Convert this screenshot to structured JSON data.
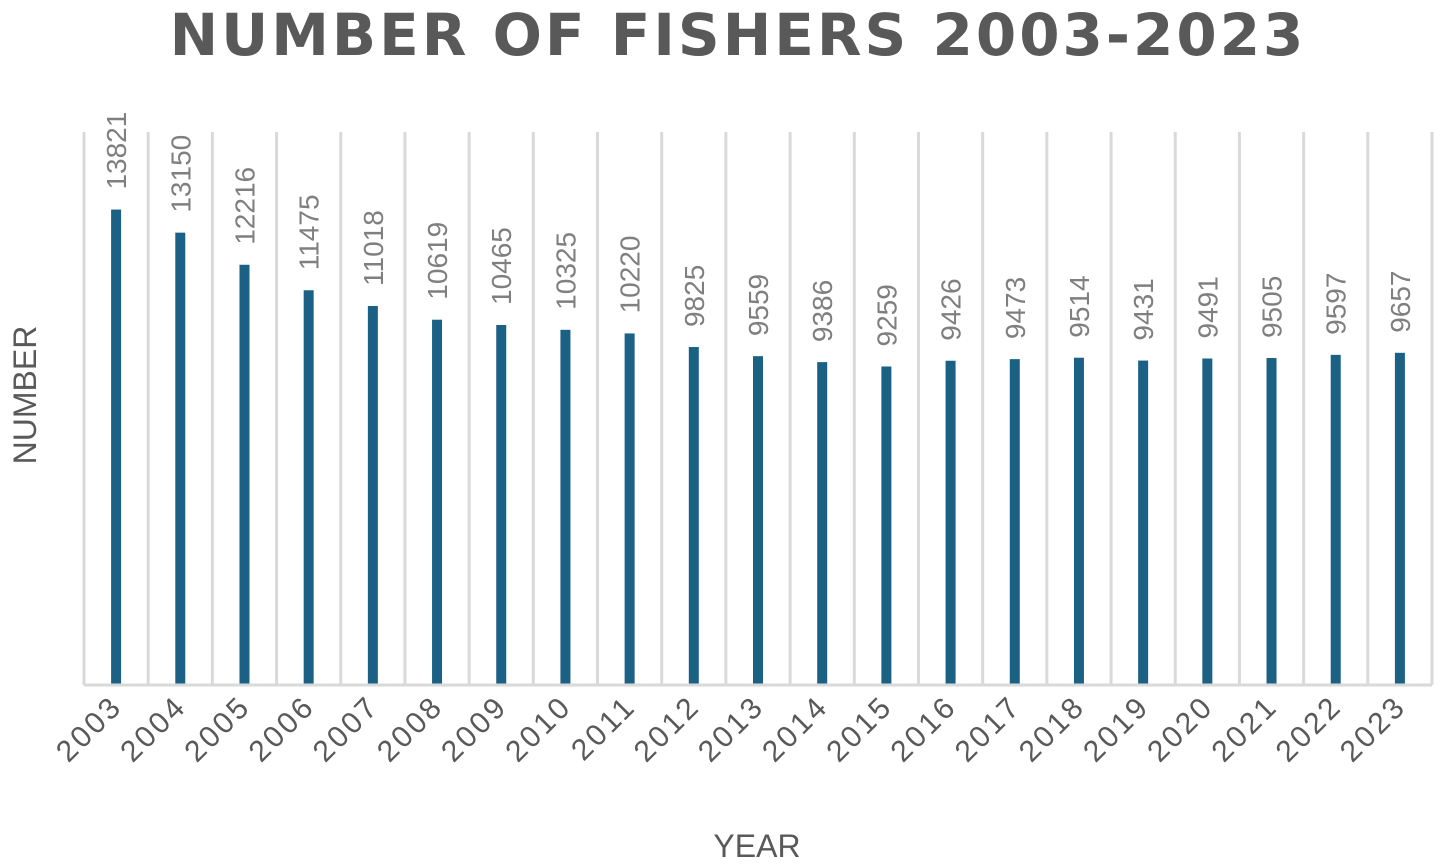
{
  "chart_data": {
    "type": "bar",
    "title": "NUMBER OF FISHERS 2003-2023",
    "xlabel": "YEAR",
    "ylabel": "NUMBER",
    "categories": [
      "2003",
      "2004",
      "2005",
      "2006",
      "2007",
      "2008",
      "2009",
      "2010",
      "2011",
      "2012",
      "2013",
      "2014",
      "2015",
      "2016",
      "2017",
      "2018",
      "2019",
      "2020",
      "2021",
      "2022",
      "2023"
    ],
    "values": [
      13821,
      13150,
      12216,
      11475,
      11018,
      10619,
      10465,
      10325,
      10220,
      9825,
      9559,
      9386,
      9259,
      9426,
      9473,
      9514,
      9431,
      9491,
      9505,
      9597,
      9657
    ],
    "ylim": [
      0,
      20000
    ],
    "grid": "vertical",
    "legend": "none",
    "colors": {
      "bar": "#1a6185"
    }
  }
}
